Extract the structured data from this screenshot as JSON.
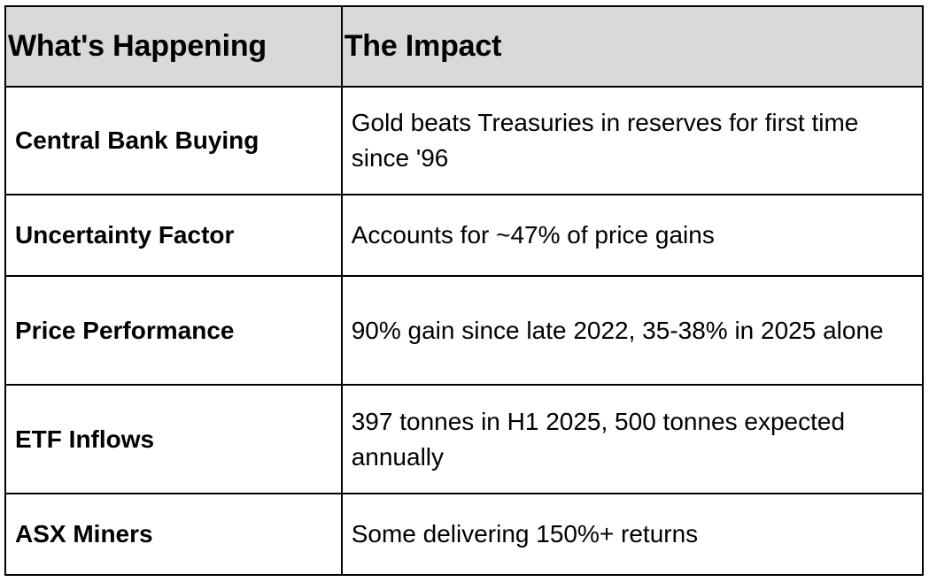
{
  "table": {
    "headers": [
      "What's Happening",
      "The Impact"
    ],
    "rows": [
      {
        "factor": "Central Bank Buying",
        "impact": "Gold beats Treasuries in reserves for first time since '96"
      },
      {
        "factor": "Uncertainty Factor",
        "impact": "Accounts for ~47% of price gains"
      },
      {
        "factor": "Price Performance",
        "impact": "90% gain since late 2022, 35-38% in 2025 alone"
      },
      {
        "factor": "ETF Inflows",
        "impact": "397 tonnes in H1 2025, 500 tonnes expected annually"
      },
      {
        "factor": "ASX Miners",
        "impact": "Some delivering 150%+ returns"
      }
    ]
  },
  "colors": {
    "header_background": "#d9d9d9",
    "border": "#000000",
    "text": "#000000"
  }
}
